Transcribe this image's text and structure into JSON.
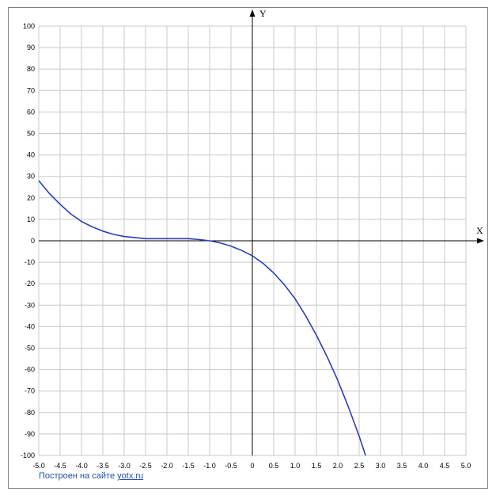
{
  "chart_data": {
    "type": "line",
    "title": "",
    "xlabel": "X",
    "ylabel": "Y",
    "xlim": [
      -5.0,
      5.0
    ],
    "ylim": [
      -100,
      100
    ],
    "x_ticks": [
      -5.0,
      -4.5,
      -4.0,
      -3.5,
      -3.0,
      -2.5,
      -2.0,
      -1.5,
      -1.0,
      -0.5,
      0,
      0.5,
      1.0,
      1.5,
      2.0,
      2.5,
      3.0,
      3.5,
      4.0,
      4.5,
      5.0
    ],
    "x_tick_labels": [
      "-5.0",
      "-4.5",
      "-4.0",
      "-3.5",
      "-3.0",
      "-2.5",
      "-2.0",
      "-1.5",
      "-1.0",
      "-0.5",
      "0",
      "0.5",
      "1.0",
      "1.5",
      "2.0",
      "2.5",
      "3.0",
      "3.5",
      "4.0",
      "4.5",
      "5.0"
    ],
    "y_ticks": [
      100,
      90,
      80,
      70,
      60,
      50,
      40,
      30,
      20,
      10,
      0,
      -10,
      -20,
      -30,
      -40,
      -50,
      -60,
      -70,
      -80,
      -90,
      -100
    ],
    "y_tick_labels": [
      "100",
      "90",
      "80",
      "70",
      "60",
      "50",
      "40",
      "30",
      "20",
      "10",
      "0",
      "-10",
      "-20",
      "-30",
      "-40",
      "-50",
      "-60",
      "-70",
      "-80",
      "-90",
      "-100"
    ],
    "grid": true,
    "line_color": "#2a3fb5",
    "series": [
      {
        "x": [
          -5.0,
          -4.75,
          -4.5,
          -4.25,
          -4.0,
          -3.75,
          -3.5,
          -3.25,
          -3.0,
          -2.75,
          -2.5,
          -2.25,
          -2.0,
          -1.75,
          -1.5,
          -1.25,
          -1.0,
          -0.75,
          -0.5,
          -0.25,
          0.0,
          0.25,
          0.5,
          0.75,
          1.0,
          1.25,
          1.5,
          1.75,
          2.0,
          2.25,
          2.5,
          2.65
        ],
        "y": [
          28,
          22,
          17,
          12.5,
          9,
          6.5,
          4.5,
          3,
          2,
          1.5,
          1,
          1,
          1,
          1,
          1,
          0.6,
          0,
          -1,
          -2.5,
          -4.5,
          -7,
          -10.5,
          -15,
          -20.5,
          -27,
          -35,
          -44,
          -54,
          -65,
          -77.5,
          -91,
          -100
        ]
      }
    ]
  },
  "footer": {
    "prefix": "Построен на сайте ",
    "link": "yotx.ru"
  }
}
